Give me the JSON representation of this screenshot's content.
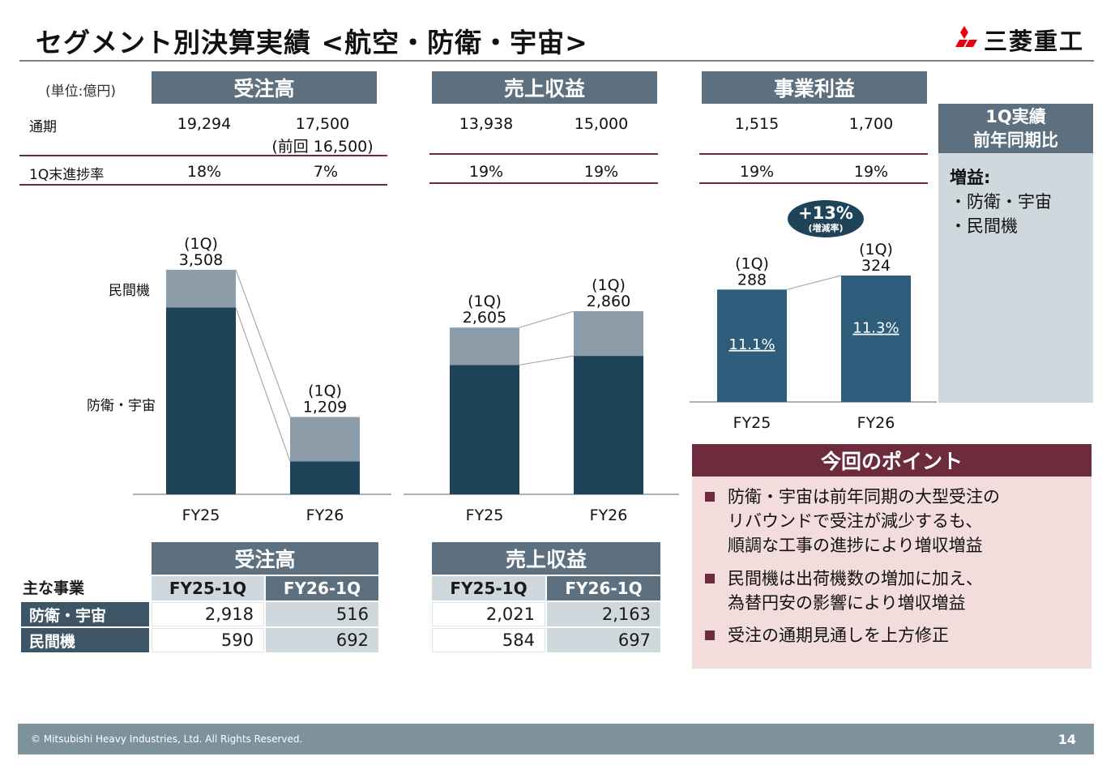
{
  "title": "セグメント別決算実績 <航空・防衛・宇宙>",
  "logo_text": "三菱重工",
  "unit": "(単位:億円)",
  "headers": {
    "orders": "受注高",
    "revenue": "売上収益",
    "profit": "事業利益"
  },
  "row_labels": {
    "full_year": "通期",
    "progress": "1Q末進捗率"
  },
  "top_table": {
    "orders": {
      "fy25": "19,294",
      "fy26": "17,500",
      "fy26_prev": "(前回 16,500)",
      "prog25": "18%",
      "prog26": "7%"
    },
    "revenue": {
      "fy25": "13,938",
      "fy26": "15,000",
      "prog25": "19%",
      "prog26": "19%"
    },
    "profit": {
      "fy25": "1,515",
      "fy26": "1,700",
      "prog25": "19%",
      "prog26": "19%"
    }
  },
  "chart_data": [
    {
      "type": "bar",
      "name": "受注高",
      "categories": [
        "FY25",
        "FY26"
      ],
      "stack_labels": [
        "防衛・宇宙",
        "民間機"
      ],
      "series": [
        {
          "name": "防衛・宇宙",
          "values": [
            2918,
            516
          ],
          "color": "#1f4459"
        },
        {
          "name": "民間機",
          "values": [
            590,
            692
          ],
          "color": "#8c9ca8"
        }
      ],
      "totals": [
        "(1Q)",
        "3,508",
        "(1Q)",
        "1,209"
      ]
    },
    {
      "type": "bar",
      "name": "売上収益",
      "categories": [
        "FY25",
        "FY26"
      ],
      "series": [
        {
          "name": "防衛・宇宙",
          "values": [
            2021,
            2163
          ],
          "color": "#1f4459"
        },
        {
          "name": "民間機",
          "values": [
            584,
            697
          ],
          "color": "#8c9ca8"
        }
      ],
      "totals": [
        "(1Q)",
        "2,605",
        "(1Q)",
        "2,860"
      ]
    },
    {
      "type": "bar",
      "name": "事業利益",
      "categories": [
        "FY25",
        "FY26"
      ],
      "values": [
        288,
        324
      ],
      "margins": [
        "11.1%",
        "11.3%"
      ],
      "totals": [
        "(1Q)",
        "288",
        "(1Q)",
        "324"
      ],
      "color": "#2d5d7b",
      "growth": "+13%",
      "growth_label": "(増減率)"
    }
  ],
  "side_panel": {
    "head1": "1Q実績",
    "head2": "前年同期比",
    "title": "増益:",
    "items": [
      "・防衛・宇宙",
      "・民間機"
    ]
  },
  "points": {
    "head": "今回のポイント",
    "items": [
      "防衛・宇宙は前年同期の大型受注の\nリバウンドで受注が減少するも、\n順調な工事の進捗により増収増益",
      "民間機は出荷機数の増加に加え、\n為替円安の影響により増収増益",
      "受注の通期見通しを上方修正"
    ]
  },
  "seg_table": {
    "main_business": "主な事業",
    "orders_head": "受注高",
    "revenue_head": "売上収益",
    "col1": "FY25-1Q",
    "col2": "FY26-1Q",
    "rows": [
      {
        "label": "防衛・宇宙",
        "o25": "2,918",
        "o26": "516",
        "r25": "2,021",
        "r26": "2,163"
      },
      {
        "label": "民間機",
        "o25": "590",
        "o26": "692",
        "r25": "584",
        "r26": "697"
      }
    ]
  },
  "footer": {
    "copyright": "© Mitsubishi Heavy Industries, Ltd.  All Rights Reserved.",
    "page": "14"
  },
  "colors": {
    "header": "#5d7080",
    "accent": "#6e2b3e",
    "dark_bar": "#1f4459",
    "light_bar": "#8c9ca8",
    "profit_bar": "#2d5d7b"
  }
}
